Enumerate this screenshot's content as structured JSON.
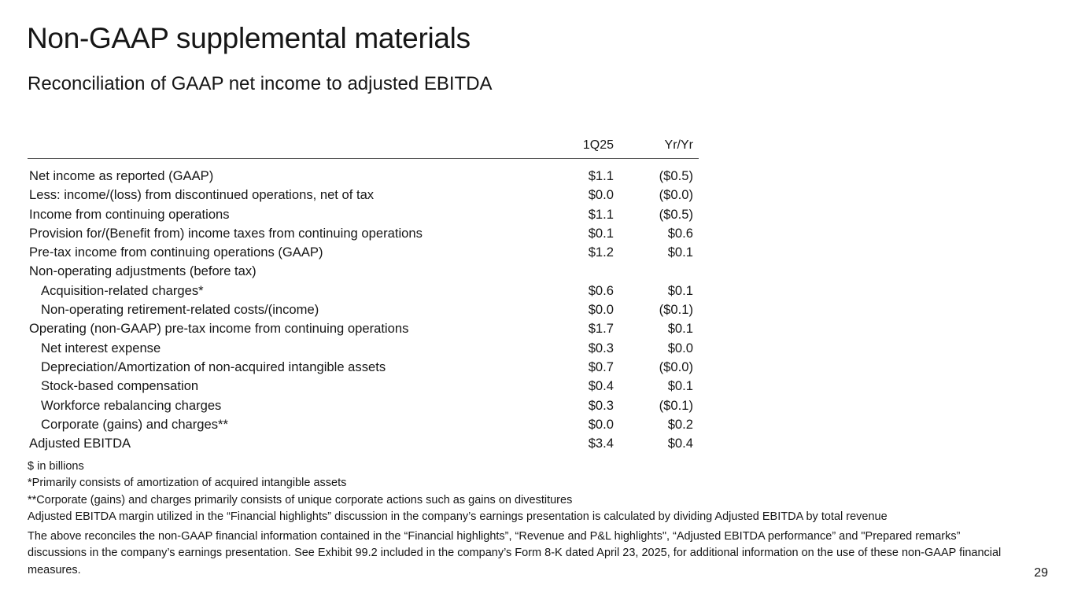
{
  "title": "Non-GAAP supplemental materials",
  "subtitle": "Reconciliation of GAAP net income to adjusted EBITDA",
  "table": {
    "columns": [
      "1Q25",
      "Yr/Yr"
    ],
    "rows": [
      {
        "label": "Net income as reported (GAAP)",
        "q": "$1.1",
        "yy": "($0.5)",
        "indent": false
      },
      {
        "label": "Less: income/(loss) from discontinued operations, net of tax",
        "q": "$0.0",
        "yy": "($0.0)",
        "indent": false
      },
      {
        "label": "Income from continuing operations",
        "q": "$1.1",
        "yy": "($0.5)",
        "indent": false
      },
      {
        "label": "Provision for/(Benefit from) income taxes from continuing operations",
        "q": "$0.1",
        "yy": "$0.6",
        "indent": false
      },
      {
        "label": "Pre-tax income from continuing operations (GAAP)",
        "q": "$1.2",
        "yy": "$0.1",
        "indent": false
      },
      {
        "label": "Non-operating adjustments (before tax)",
        "q": "",
        "yy": "",
        "indent": false
      },
      {
        "label": "Acquisition-related charges*",
        "q": "$0.6",
        "yy": "$0.1",
        "indent": true
      },
      {
        "label": "Non-operating retirement-related costs/(income)",
        "q": "$0.0",
        "yy": "($0.1)",
        "indent": true
      },
      {
        "label": "Operating (non-GAAP) pre-tax income from continuing operations",
        "q": "$1.7",
        "yy": "$0.1",
        "indent": false
      },
      {
        "label": "Net interest expense",
        "q": "$0.3",
        "yy": "$0.0",
        "indent": true
      },
      {
        "label": "Depreciation/Amortization of non-acquired intangible assets",
        "q": "$0.7",
        "yy": "($0.0)",
        "indent": true
      },
      {
        "label": "Stock-based compensation",
        "q": "$0.4",
        "yy": "$0.1",
        "indent": true
      },
      {
        "label": "Workforce rebalancing charges",
        "q": "$0.3",
        "yy": "($0.1)",
        "indent": true
      },
      {
        "label": "Corporate (gains) and charges**",
        "q": "$0.0",
        "yy": "$0.2",
        "indent": true
      },
      {
        "label": "Adjusted EBITDA",
        "q": "$3.4",
        "yy": "$0.4",
        "indent": false
      }
    ]
  },
  "notes": [
    "$ in billions",
    "*Primarily consists of amortization of acquired intangible assets",
    "**Corporate (gains) and charges primarily consists of unique corporate actions such as gains on divestitures",
    "Adjusted EBITDA margin utilized in the “Financial highlights” discussion in the company’s earnings presentation is calculated by dividing Adjusted EBITDA by total revenue"
  ],
  "paragraph": "The above reconciles the non-GAAP financial information contained in the “Financial highlights”, “Revenue and P&L highlights\", “Adjusted EBITDA performance” and \"Prepared remarks”  discussions in the company’s earnings presentation. See Exhibit 99.2 included in the company’s Form 8-K dated April 23, 2025, for additional information on the use of these non-GAAP financial measures.",
  "page_number": "29"
}
